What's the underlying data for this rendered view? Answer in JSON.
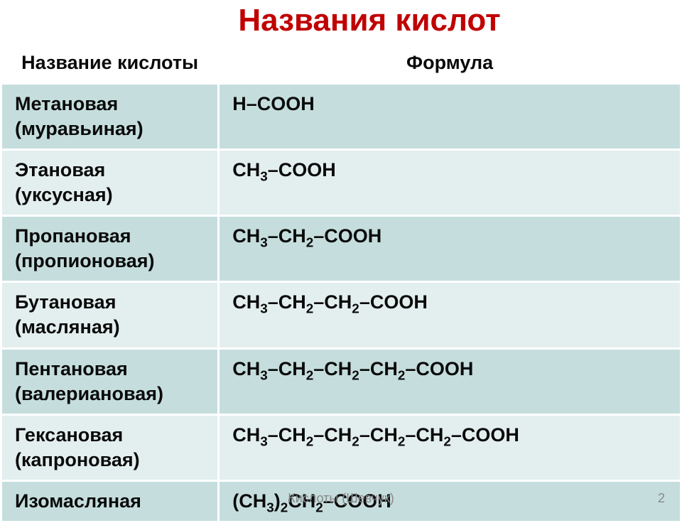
{
  "title": "Названия кислот",
  "title_color": "#c00000",
  "header": {
    "name": "Название кислоты",
    "formula": "Формула"
  },
  "header_bg": "#ffffff",
  "header_text_color": "#0a0a0a",
  "row_colors": {
    "dark": "#c5dedd",
    "light": "#e3efee"
  },
  "border_color": "#ffffff",
  "cell_text_color": "#0a0a0a",
  "rows": [
    {
      "name": "Метановая (муравьиная)",
      "formula_html": "H–COOH",
      "shade": "dark"
    },
    {
      "name": "Этановая (уксусная)",
      "formula_html": "CH<sub>3</sub>–COOH",
      "shade": "light"
    },
    {
      "name": "Пропановая (пропионовая)",
      "formula_html": "CH<sub>3</sub>–CH<sub>2</sub>–COOH",
      "shade": "dark"
    },
    {
      "name": "Бутановая (масляная)",
      "formula_html": "CH<sub>3</sub>–CH<sub>2</sub>–CH<sub>2</sub>–COOH",
      "shade": "light"
    },
    {
      "name": "Пентановая (валериановая)",
      "formula_html": "CH<sub>3</sub>–CH<sub>2</sub>–CH<sub>2</sub>–CH<sub>2</sub>–COOH",
      "shade": "dark"
    },
    {
      "name": "Гексановая (капроновая)",
      "formula_html": "CH<sub>3</sub>–CH<sub>2</sub>–CH<sub>2</sub>–CH<sub>2</sub>–CH<sub>2</sub>–COOH",
      "shade": "light"
    },
    {
      "name": "Изомасляная",
      "formula_html": "(CH<sub>3</sub>)<sub>2</sub>CH<sub>2</sub>–COOH",
      "shade": "dark"
    }
  ],
  "footer": "Кислоты (Шевчук)",
  "footer_color": "#888888",
  "page_number": "2"
}
